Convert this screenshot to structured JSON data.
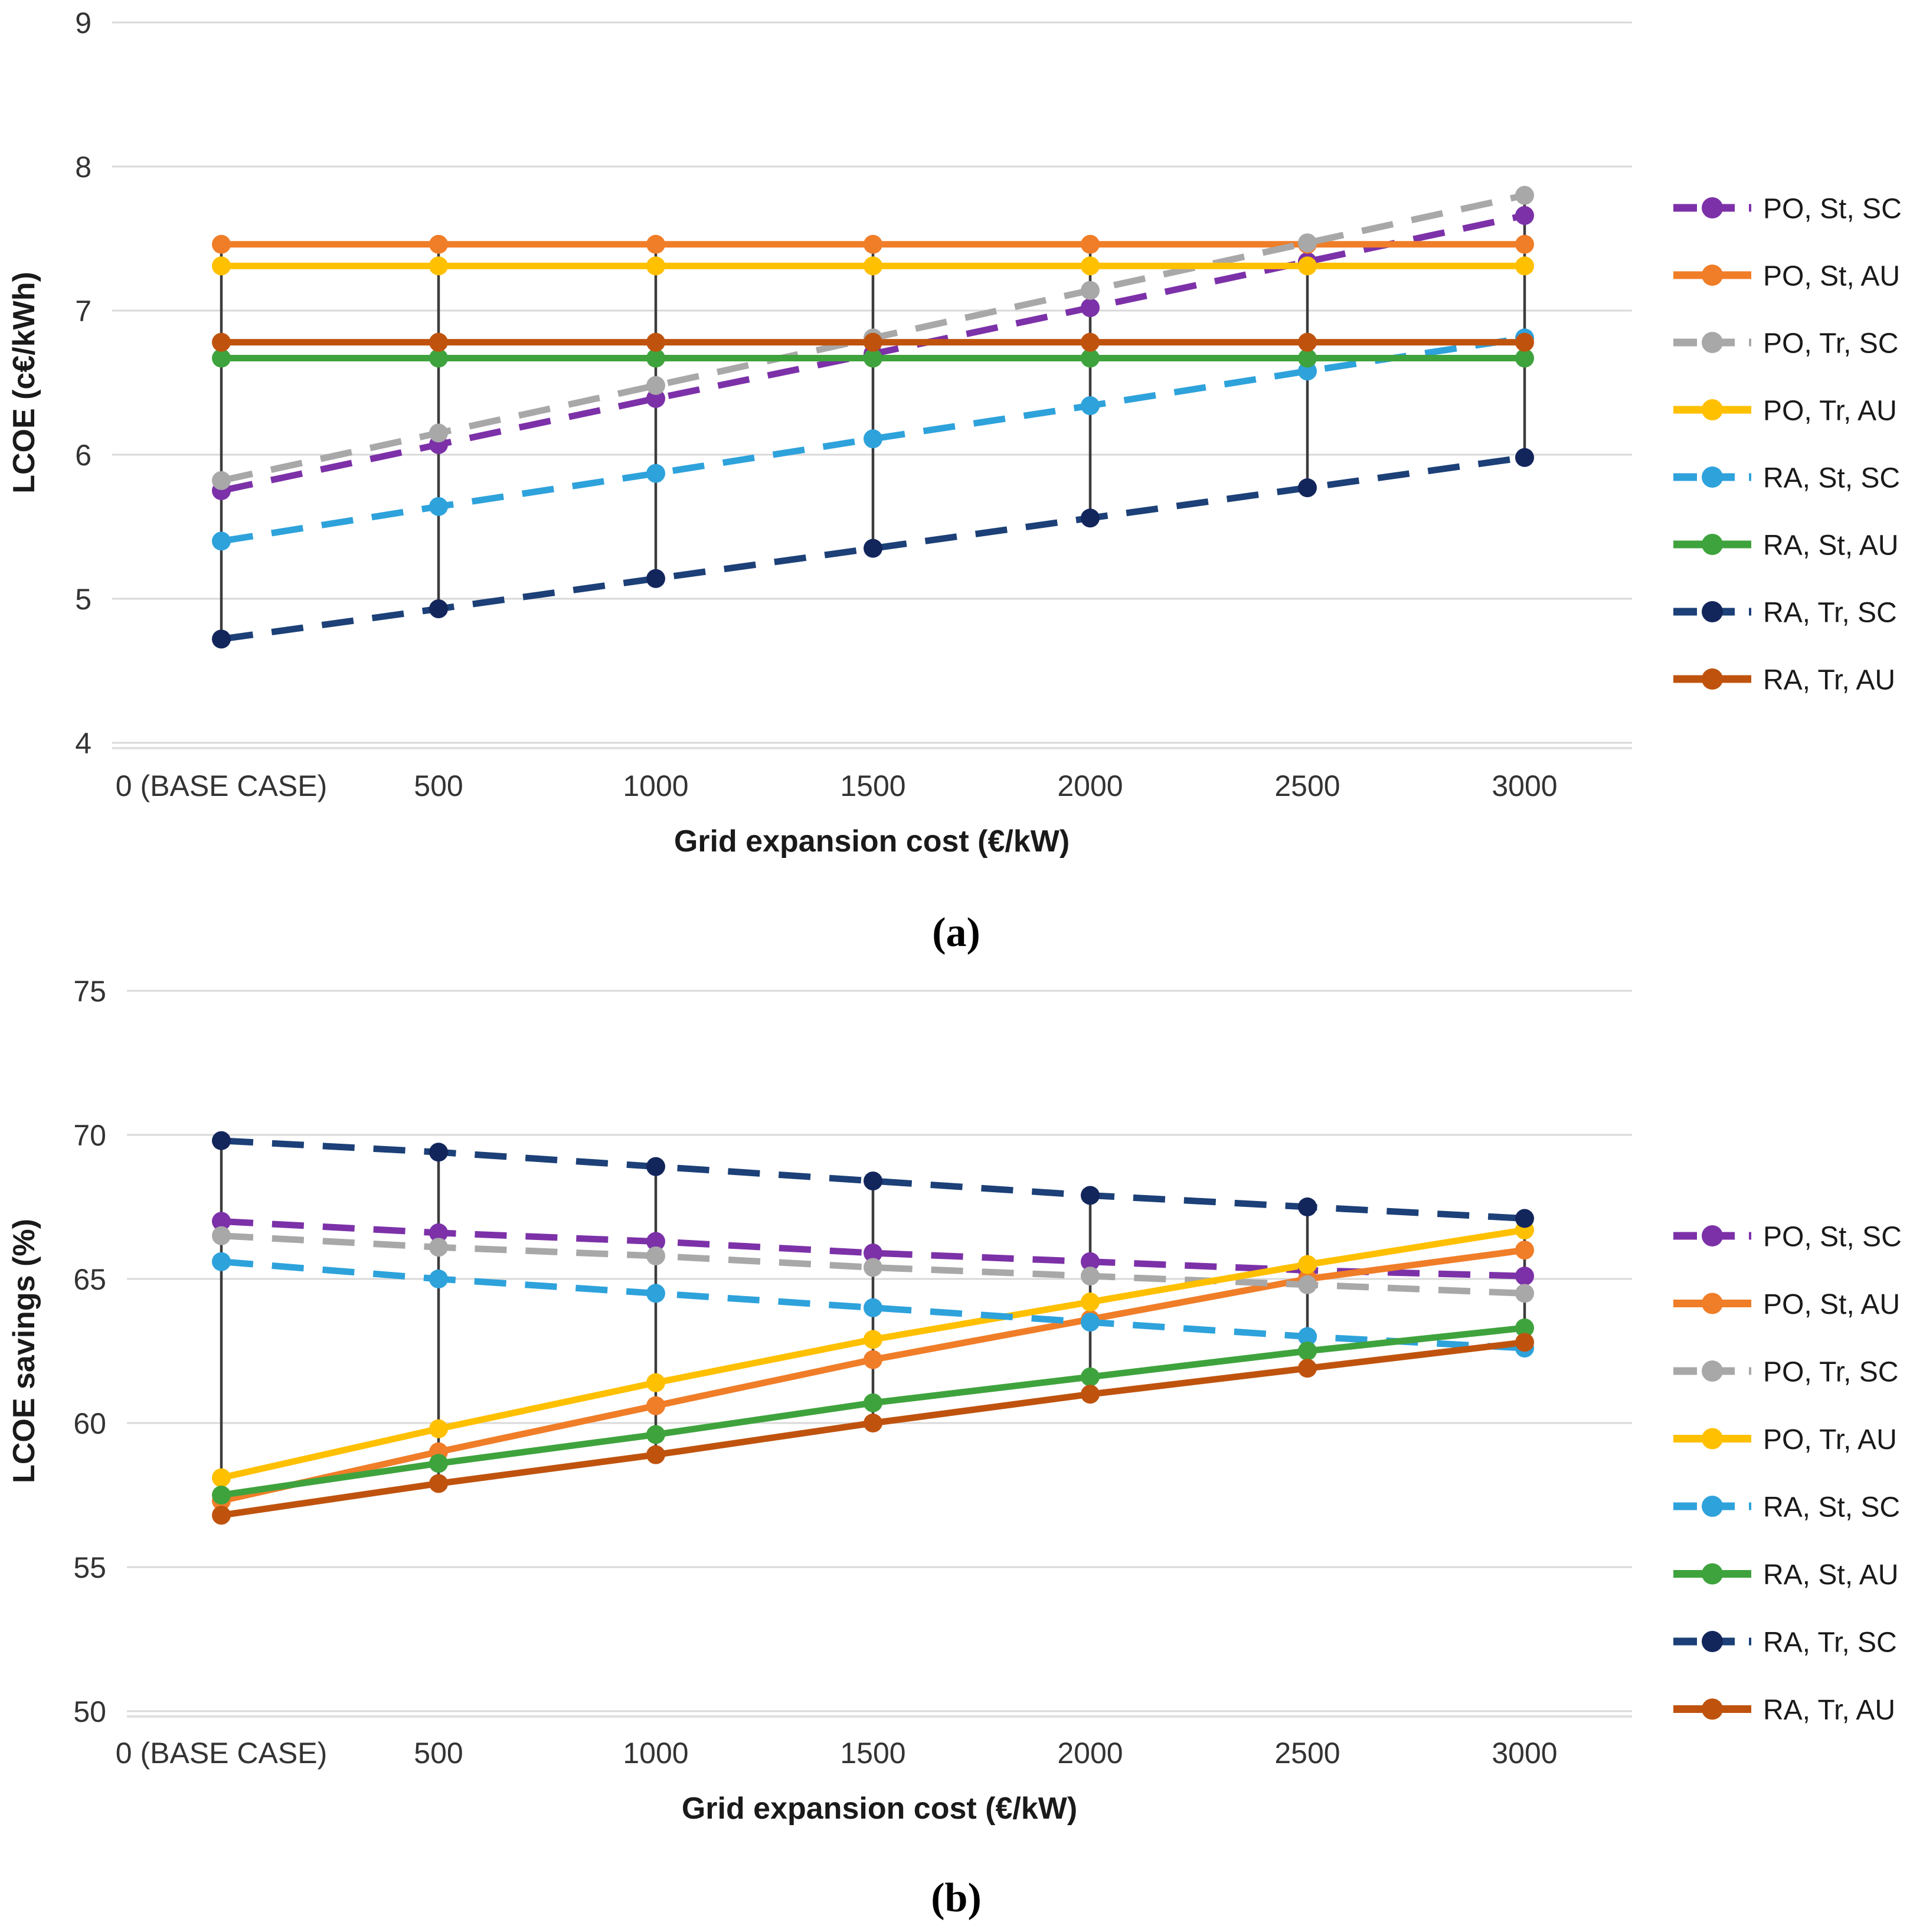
{
  "captions": {
    "a": "(a)",
    "b": "(b)"
  },
  "chart_data": [
    {
      "id": "a",
      "type": "line",
      "title": "",
      "xlabel": "Grid expansion cost (€/kW)",
      "ylabel": "LCOE (c€/kWh)",
      "categories": [
        "0 (BASE CASE)",
        "500",
        "1000",
        "1500",
        "2000",
        "2500",
        "3000"
      ],
      "ylim": [
        4,
        9
      ],
      "yticks": [
        9,
        8,
        7,
        6,
        5,
        4
      ],
      "grid": true,
      "legend_position": "right",
      "highlow_lines": true,
      "highlow_color": "#3c3c3c",
      "grid_color": "#d9d9d9",
      "series": [
        {
          "name": "PO, St, SC",
          "color": "#7c31a8",
          "dashed": true,
          "values": [
            5.75,
            6.07,
            6.39,
            6.7,
            7.02,
            7.34,
            7.66
          ]
        },
        {
          "name": "PO, St, AU",
          "color": "#f07d28",
          "dashed": false,
          "values": [
            7.46,
            7.46,
            7.46,
            7.46,
            7.46,
            7.46,
            7.46
          ]
        },
        {
          "name": "PO, Tr, SC",
          "color": "#a8a8a8",
          "dashed": true,
          "values": [
            5.82,
            6.15,
            6.48,
            6.81,
            7.14,
            7.47,
            7.8
          ]
        },
        {
          "name": "PO, Tr, AU",
          "color": "#ffc000",
          "dashed": false,
          "values": [
            7.31,
            7.31,
            7.31,
            7.31,
            7.31,
            7.31,
            7.31
          ]
        },
        {
          "name": "RA, St, SC",
          "color": "#2ea2db",
          "dashed": true,
          "values": [
            5.4,
            5.64,
            5.87,
            6.11,
            6.34,
            6.58,
            6.81
          ]
        },
        {
          "name": "RA, St, AU",
          "color": "#3fa33d",
          "dashed": false,
          "values": [
            6.67,
            6.67,
            6.67,
            6.67,
            6.67,
            6.67,
            6.67
          ]
        },
        {
          "name": "RA, Tr, SC",
          "color": "#1c4077",
          "marker_color": "#13265c",
          "dashed": true,
          "values": [
            4.72,
            4.93,
            5.14,
            5.35,
            5.56,
            5.77,
            5.98
          ]
        },
        {
          "name": "RA, Tr, AU",
          "color": "#bf530e",
          "dashed": false,
          "values": [
            6.78,
            6.78,
            6.78,
            6.78,
            6.78,
            6.78,
            6.78
          ]
        }
      ]
    },
    {
      "id": "b",
      "type": "line",
      "title": "",
      "xlabel": "Grid expansion cost (€/kW)",
      "ylabel": "LCOE savings (%)",
      "categories": [
        "0 (BASE CASE)",
        "500",
        "1000",
        "1500",
        "2000",
        "2500",
        "3000"
      ],
      "ylim": [
        50,
        75
      ],
      "yticks": [
        75,
        70,
        65,
        60,
        55,
        50
      ],
      "grid": true,
      "legend_position": "right",
      "highlow_lines": true,
      "highlow_color": "#3c3c3c",
      "grid_color": "#d9d9d9",
      "series": [
        {
          "name": "PO, St, SC",
          "color": "#7c31a8",
          "dashed": true,
          "values": [
            67.0,
            66.6,
            66.3,
            65.9,
            65.6,
            65.3,
            65.1
          ]
        },
        {
          "name": "PO, St, AU",
          "color": "#f07d28",
          "dashed": false,
          "values": [
            57.3,
            59.0,
            60.6,
            62.2,
            63.6,
            65.0,
            66.0
          ]
        },
        {
          "name": "PO, Tr, SC",
          "color": "#a8a8a8",
          "dashed": true,
          "values": [
            66.5,
            66.1,
            65.8,
            65.4,
            65.1,
            64.8,
            64.5
          ]
        },
        {
          "name": "PO, Tr, AU",
          "color": "#ffc000",
          "dashed": false,
          "values": [
            58.1,
            59.8,
            61.4,
            62.9,
            64.2,
            65.5,
            66.7
          ]
        },
        {
          "name": "RA, St, SC",
          "color": "#2ea2db",
          "dashed": true,
          "values": [
            65.6,
            65.0,
            64.5,
            64.0,
            63.5,
            63.0,
            62.6
          ]
        },
        {
          "name": "RA, St, AU",
          "color": "#3fa33d",
          "dashed": false,
          "values": [
            57.5,
            58.6,
            59.6,
            60.7,
            61.6,
            62.5,
            63.3
          ]
        },
        {
          "name": "RA, Tr, SC",
          "color": "#1c4077",
          "marker_color": "#13265c",
          "dashed": true,
          "values": [
            69.8,
            69.4,
            68.9,
            68.4,
            67.9,
            67.5,
            67.1
          ]
        },
        {
          "name": "RA, Tr, AU",
          "color": "#bf530e",
          "dashed": false,
          "values": [
            56.8,
            57.9,
            58.9,
            60.0,
            61.0,
            61.9,
            62.8
          ]
        }
      ]
    }
  ]
}
